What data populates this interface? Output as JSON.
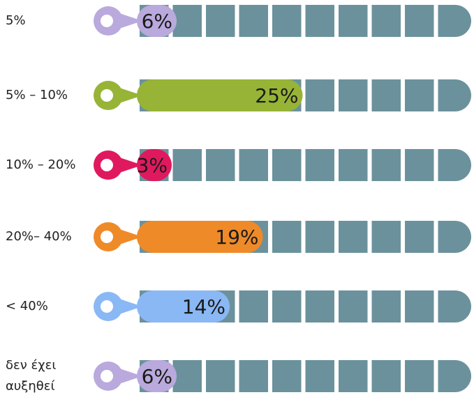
{
  "chart_data": {
    "type": "bar",
    "orientation": "horizontal",
    "categories": [
      "5%",
      "5% – 10%",
      "10% – 20%",
      "20%– 40%",
      "< 40%",
      "δεν έχει αυξηθεί"
    ],
    "values": [
      6,
      25,
      3,
      19,
      14,
      6
    ],
    "value_labels": [
      "6%",
      "25%",
      "3%",
      "19%",
      "14%",
      "6%"
    ],
    "colors": [
      "#b9a9dc",
      "#97b436",
      "#e0195f",
      "#ef8a28",
      "#8ab8f5",
      "#b9a9dc"
    ],
    "track_color": "#6b929c",
    "xlim": [
      0,
      50
    ]
  }
}
